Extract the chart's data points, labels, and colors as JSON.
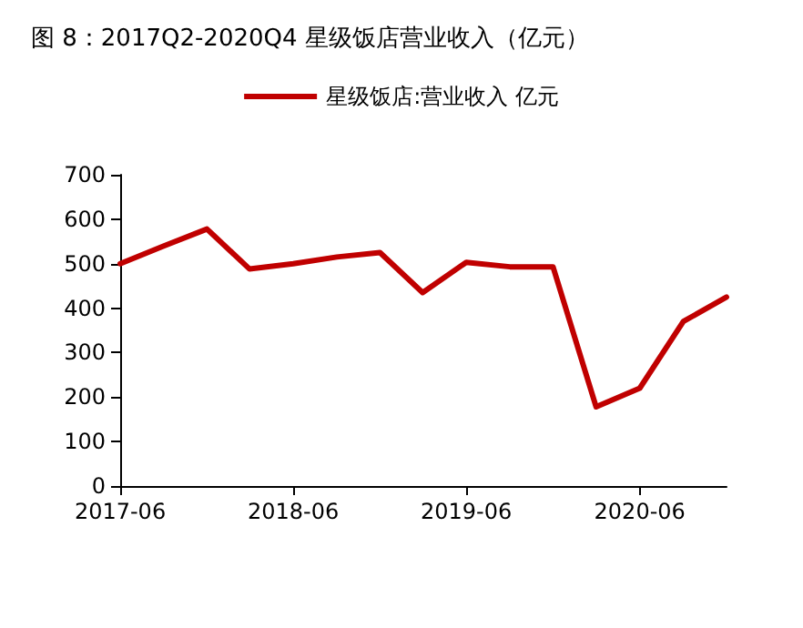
{
  "chart_data": {
    "type": "line",
    "title": "图 8：2017Q2-2020Q4 星级饭店营业收入（亿元）",
    "x": [
      "2017-06",
      "2017-09",
      "2017-12",
      "2018-03",
      "2018-06",
      "2018-09",
      "2018-12",
      "2019-03",
      "2019-06",
      "2019-09",
      "2019-12",
      "2020-03",
      "2020-06",
      "2020-09",
      "2020-12"
    ],
    "series": [
      {
        "name": "星级饭店:营业收入 亿元",
        "color": "#c00000",
        "values": [
          500,
          540,
          578,
          488,
          500,
          515,
          525,
          435,
          503,
          493,
          493,
          178,
          220,
          370,
          425
        ]
      }
    ],
    "xlim": [
      "2017-06",
      "2020-12"
    ],
    "xticks": [
      "2017-06",
      "2018-06",
      "2019-06",
      "2020-06"
    ],
    "ylim": [
      0,
      700
    ],
    "yticks": [
      0,
      100,
      200,
      300,
      400,
      500,
      600,
      700
    ],
    "grid": false,
    "legend": "top",
    "marker": "none",
    "line_style": "solid"
  }
}
